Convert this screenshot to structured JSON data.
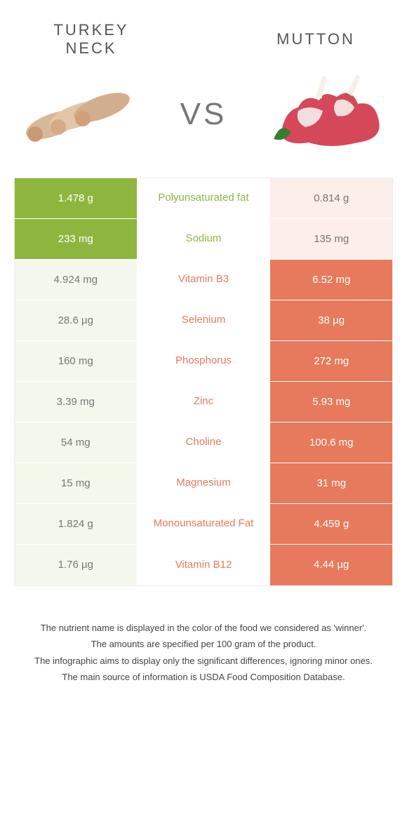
{
  "colors": {
    "left": "#8eb63f",
    "right": "#e77a5c",
    "left_faded": "#f4f8ec",
    "right_faded": "#fceee9",
    "nutrient_left_text": "#8eb63f",
    "nutrient_right_text": "#e77a5c"
  },
  "header": {
    "left_title": "TURKEY NECK",
    "right_title": "MUTTON",
    "vs_label": "VS"
  },
  "rows": [
    {
      "nutrient": "Polyunsaturated fat",
      "left": "1.478 g",
      "right": "0.814 g",
      "winner": "left"
    },
    {
      "nutrient": "Sodium",
      "left": "233 mg",
      "right": "135 mg",
      "winner": "left"
    },
    {
      "nutrient": "Vitamin B3",
      "left": "4.924 mg",
      "right": "6.52 mg",
      "winner": "right"
    },
    {
      "nutrient": "Selenium",
      "left": "28.6 µg",
      "right": "38 µg",
      "winner": "right"
    },
    {
      "nutrient": "Phosphorus",
      "left": "160 mg",
      "right": "272 mg",
      "winner": "right"
    },
    {
      "nutrient": "Zinc",
      "left": "3.39 mg",
      "right": "5.93 mg",
      "winner": "right"
    },
    {
      "nutrient": "Choline",
      "left": "54 mg",
      "right": "100.6 mg",
      "winner": "right"
    },
    {
      "nutrient": "Magnesium",
      "left": "15 mg",
      "right": "31 mg",
      "winner": "right"
    },
    {
      "nutrient": "Monounsaturated Fat",
      "left": "1.824 g",
      "right": "4.459 g",
      "winner": "right"
    },
    {
      "nutrient": "Vitamin B12",
      "left": "1.76 µg",
      "right": "4.44 µg",
      "winner": "right"
    }
  ],
  "footnotes": [
    "The nutrient name is displayed in the color of the food we considered as 'winner'.",
    "The amounts are specified per 100 gram of the product.",
    "The infographic aims to display only the significant differences, ignoring minor ones.",
    "The main source of information is USDA Food Composition Database."
  ]
}
